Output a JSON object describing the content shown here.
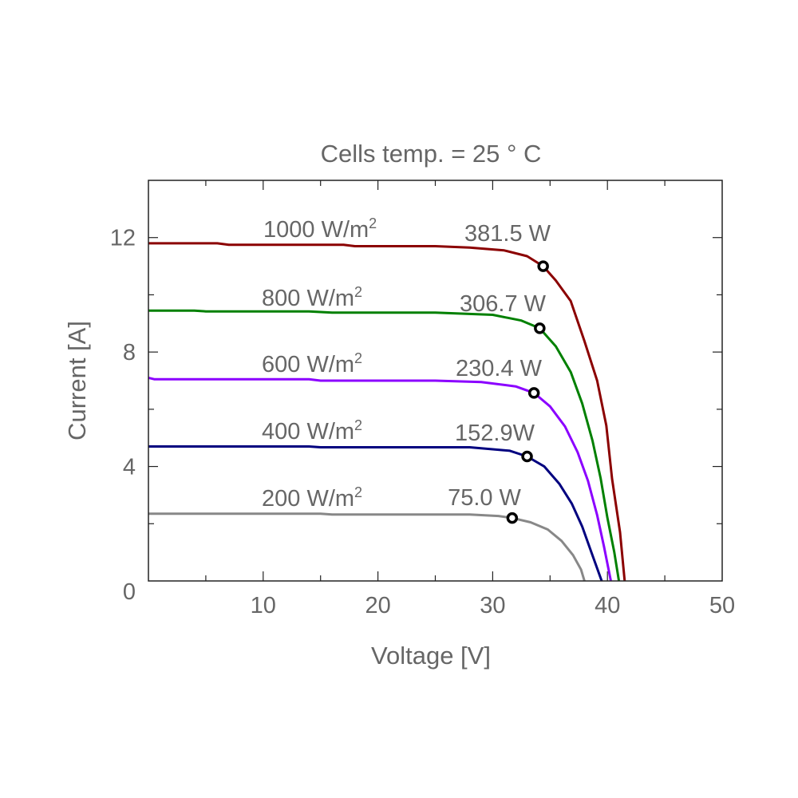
{
  "chart_data": {
    "type": "line",
    "title": "Cells temp. = 25 ° C",
    "xlabel": "Voltage [V]",
    "ylabel": "Current [A]",
    "xlim": [
      0,
      50
    ],
    "ylim": [
      0,
      14
    ],
    "xticks": [
      10,
      20,
      30,
      40,
      50
    ],
    "yticks": [
      0,
      4,
      8,
      12
    ],
    "grid": false,
    "series": [
      {
        "name": "1000 W/m²",
        "label_main": "1000 W/m",
        "label_sup": "2",
        "color": "#8b0000",
        "points": [
          [
            0,
            11.8
          ],
          [
            6,
            11.8
          ],
          [
            7,
            11.75
          ],
          [
            17,
            11.75
          ],
          [
            18,
            11.7
          ],
          [
            25,
            11.7
          ],
          [
            28,
            11.65
          ],
          [
            31,
            11.55
          ],
          [
            33,
            11.35
          ],
          [
            34.4,
            11.0
          ],
          [
            35.5,
            10.5
          ],
          [
            36.8,
            9.78
          ],
          [
            38,
            8.38
          ],
          [
            39.1,
            7.0
          ],
          [
            39.9,
            5.43
          ],
          [
            40.4,
            3.57
          ],
          [
            41.1,
            1.7
          ],
          [
            41.5,
            0
          ]
        ],
        "mpp": {
          "v": 34.4,
          "i": 11.0,
          "label": "381.5 W"
        }
      },
      {
        "name": "800 W/m²",
        "label_main": "800 W/m",
        "label_sup": "2",
        "color": "#008000",
        "points": [
          [
            0,
            9.45
          ],
          [
            4,
            9.45
          ],
          [
            5,
            9.42
          ],
          [
            14,
            9.42
          ],
          [
            16,
            9.38
          ],
          [
            25,
            9.38
          ],
          [
            30,
            9.3
          ],
          [
            32.5,
            9.1
          ],
          [
            34.1,
            8.83
          ],
          [
            35.5,
            8.2
          ],
          [
            36.8,
            7.3
          ],
          [
            37.8,
            6.2
          ],
          [
            38.7,
            4.9
          ],
          [
            39.4,
            3.6
          ],
          [
            40.0,
            2.2
          ],
          [
            40.6,
            1.0
          ],
          [
            41.0,
            0
          ]
        ],
        "mpp": {
          "v": 34.1,
          "i": 8.83,
          "label": "306.7 W"
        }
      },
      {
        "name": "600 W/m²",
        "label_main": "600 W/m",
        "label_sup": "2",
        "color": "#8b00ff",
        "points": [
          [
            0,
            7.1
          ],
          [
            0.5,
            7.05
          ],
          [
            14,
            7.05
          ],
          [
            15,
            7.0
          ],
          [
            25,
            7.0
          ],
          [
            29,
            6.95
          ],
          [
            32,
            6.8
          ],
          [
            33.6,
            6.57
          ],
          [
            35,
            6.1
          ],
          [
            36.3,
            5.4
          ],
          [
            37.4,
            4.5
          ],
          [
            38.3,
            3.5
          ],
          [
            39.1,
            2.3
          ],
          [
            39.7,
            1.2
          ],
          [
            40.3,
            0
          ]
        ],
        "mpp": {
          "v": 33.6,
          "i": 6.57,
          "label": "230.4 W"
        }
      },
      {
        "name": "400 W/m²",
        "label_main": "400 W/m",
        "label_sup": "2",
        "color": "#00007f",
        "points": [
          [
            0,
            4.7
          ],
          [
            14,
            4.7
          ],
          [
            15,
            4.67
          ],
          [
            28,
            4.67
          ],
          [
            31.5,
            4.55
          ],
          [
            33,
            4.35
          ],
          [
            34.5,
            4.0
          ],
          [
            35.8,
            3.4
          ],
          [
            36.9,
            2.7
          ],
          [
            37.8,
            1.9
          ],
          [
            38.6,
            1.0
          ],
          [
            39.5,
            0
          ]
        ],
        "mpp": {
          "v": 33.0,
          "i": 4.35,
          "label": "152.9W"
        }
      },
      {
        "name": "200 W/m²",
        "label_main": "200 W/m",
        "label_sup": "2",
        "color": "#888888",
        "points": [
          [
            0,
            2.35
          ],
          [
            15,
            2.35
          ],
          [
            16,
            2.32
          ],
          [
            28,
            2.32
          ],
          [
            30.5,
            2.27
          ],
          [
            31.7,
            2.2
          ],
          [
            33.3,
            2.05
          ],
          [
            34.8,
            1.8
          ],
          [
            36,
            1.4
          ],
          [
            37,
            0.9
          ],
          [
            37.7,
            0.4
          ],
          [
            38.0,
            0
          ]
        ],
        "mpp": {
          "v": 31.7,
          "i": 2.2,
          "label": "75.0 W"
        }
      }
    ]
  }
}
